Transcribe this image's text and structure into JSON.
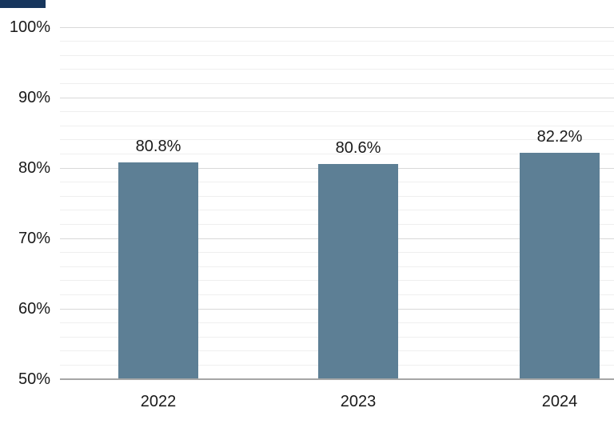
{
  "decor": {
    "corner_accent_color": "#17365d"
  },
  "chart_data": {
    "type": "bar",
    "title": "",
    "xlabel": "",
    "ylabel": "",
    "categories": [
      "2022",
      "2023",
      "2024"
    ],
    "values": [
      80.8,
      80.6,
      82.2
    ],
    "value_labels": [
      "80.8%",
      "80.6%",
      "82.2%"
    ],
    "y_tick_labels": [
      "100%",
      "90%",
      "80%",
      "70%",
      "60%",
      "50%"
    ],
    "y_tick_values": [
      100,
      90,
      80,
      70,
      60,
      50
    ],
    "ylim": [
      50,
      100
    ],
    "major_step": 10,
    "minor_step": 2,
    "grid": "on",
    "legend": "none",
    "colors": {
      "bar": "#5d7f95",
      "major_grid": "#d9d9d9",
      "minor_grid": "#efefef",
      "axis_line": "#a6a6a6",
      "label_text": "#1a1a1a"
    }
  }
}
